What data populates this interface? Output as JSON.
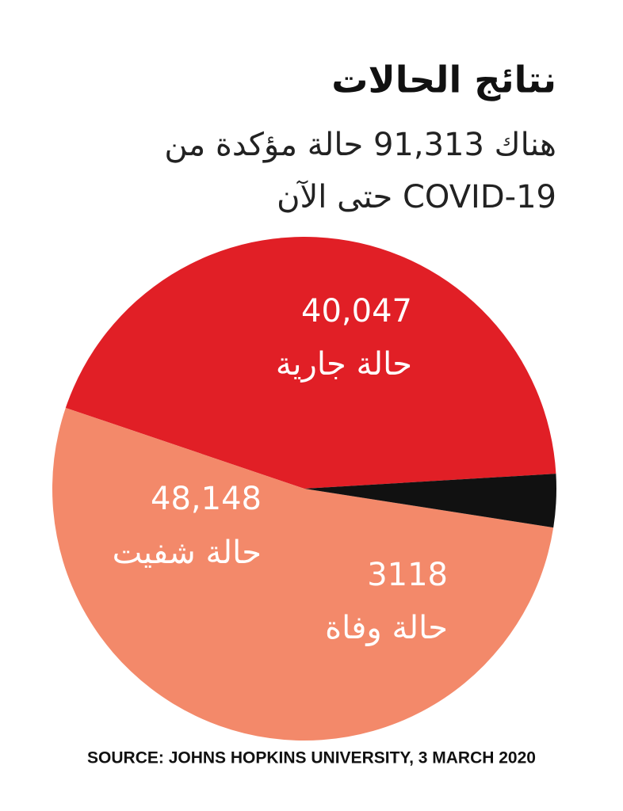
{
  "chart_data": {
    "type": "pie",
    "title": "نتائج الحالات",
    "subtitle": "هناك 91,313 حالة مؤكدة من COVID-19 حتى الآن",
    "categories": [
      "حالة جارية",
      "حالة شفيت",
      "حالة وفاة"
    ],
    "values": [
      40047,
      48148,
      3118
    ],
    "value_labels": [
      "40,047",
      "48,148",
      "3118"
    ],
    "colors": [
      "#e11f26",
      "#f3896a",
      "#111111"
    ],
    "source": "SOURCE: JOHNS HOPKINS UNIVERSITY, 3 MARCH 2020"
  }
}
